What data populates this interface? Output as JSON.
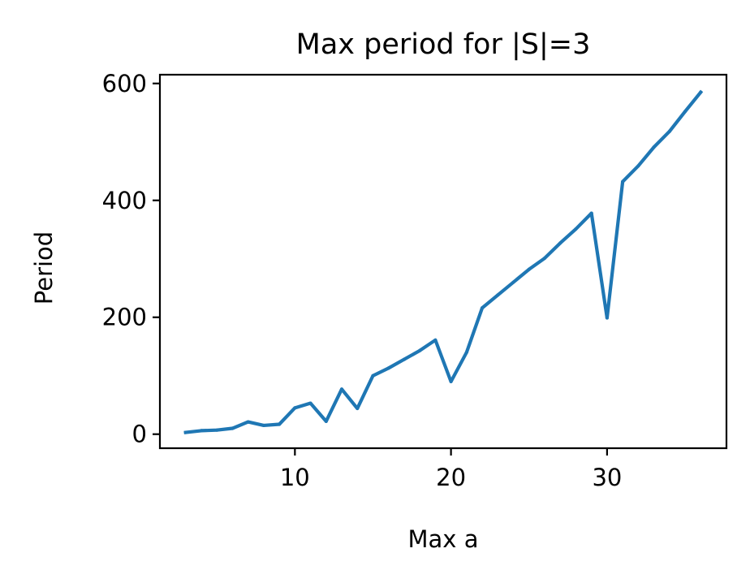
{
  "chart_data": {
    "type": "line",
    "title": "Max period for |S|=3",
    "xlabel": "Max a",
    "ylabel": "Period",
    "xlim": [
      1.35,
      37.65
    ],
    "ylim": [
      -24,
      615
    ],
    "xticks": [
      10,
      20,
      30
    ],
    "yticks": [
      0,
      200,
      400,
      600
    ],
    "grid": false,
    "series": [
      {
        "color": "#1f77b4",
        "x": [
          3,
          4,
          5,
          6,
          7,
          8,
          9,
          10,
          11,
          12,
          13,
          14,
          15,
          16,
          17,
          18,
          19,
          20,
          21,
          22,
          23,
          24,
          25,
          26,
          27,
          28,
          29,
          30,
          31,
          32,
          33,
          34,
          35,
          36
        ],
        "y": [
          3,
          6,
          7,
          10,
          21,
          15,
          17,
          45,
          53,
          22,
          77,
          44,
          100,
          113,
          128,
          143,
          161,
          90,
          140,
          216,
          238,
          260,
          282,
          301,
          327,
          351,
          378,
          199,
          432,
          459,
          491,
          518,
          552,
          585
        ]
      }
    ]
  }
}
